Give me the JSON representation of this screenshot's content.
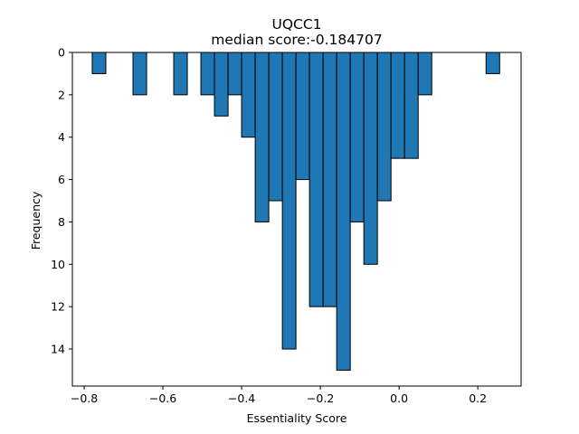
{
  "chart_data": {
    "type": "bar",
    "title": "UQCC1",
    "subtitle": "median score:-0.184707",
    "xlabel": "Essentiality Score",
    "ylabel": "Frequency",
    "xlim": [
      -0.83,
      0.31
    ],
    "ylim": [
      0,
      15.75
    ],
    "y_inverted": true,
    "grid": false,
    "bar_color": "#1f77b4",
    "edge_color": "#000000",
    "bin_width": 0.0345,
    "xticks": [
      -0.8,
      -0.6,
      -0.4,
      -0.2,
      0.0,
      0.2
    ],
    "xtick_labels": [
      "−0.8",
      "−0.6",
      "−0.4",
      "−0.2",
      "0.0",
      "0.2"
    ],
    "yticks": [
      0,
      2,
      4,
      6,
      8,
      10,
      12,
      14
    ],
    "ytick_labels": [
      "0",
      "2",
      "4",
      "6",
      "8",
      "10",
      "12",
      "14"
    ],
    "bins": [
      {
        "x0": -0.7795,
        "value": 1
      },
      {
        "x0": -0.676,
        "value": 2
      },
      {
        "x0": -0.5725,
        "value": 2
      },
      {
        "x0": -0.5035,
        "value": 2
      },
      {
        "x0": -0.469,
        "value": 3
      },
      {
        "x0": -0.4345,
        "value": 2
      },
      {
        "x0": -0.4,
        "value": 4
      },
      {
        "x0": -0.3655,
        "value": 8
      },
      {
        "x0": -0.331,
        "value": 7
      },
      {
        "x0": -0.2965,
        "value": 14
      },
      {
        "x0": -0.262,
        "value": 6
      },
      {
        "x0": -0.2275,
        "value": 12
      },
      {
        "x0": -0.193,
        "value": 12
      },
      {
        "x0": -0.1585,
        "value": 15
      },
      {
        "x0": -0.124,
        "value": 8
      },
      {
        "x0": -0.0895,
        "value": 10
      },
      {
        "x0": -0.055,
        "value": 7
      },
      {
        "x0": -0.0205,
        "value": 5
      },
      {
        "x0": 0.014,
        "value": 5
      },
      {
        "x0": 0.0485,
        "value": 2
      },
      {
        "x0": 0.221,
        "value": 1
      }
    ]
  }
}
